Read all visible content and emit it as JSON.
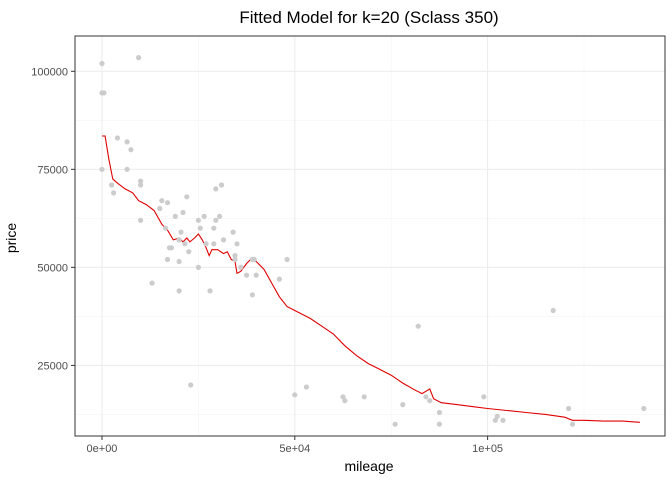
{
  "chart_data": {
    "type": "scatter",
    "title": "Fitted Model for k=20 (Sclass 350)",
    "xlabel": "mileage",
    "ylabel": "price",
    "xlim": [
      -7000,
      146000
    ],
    "ylim": [
      7000,
      109000
    ],
    "x_ticks": [
      0,
      50000,
      100000
    ],
    "x_tick_labels": [
      "0e+00",
      "5e+04",
      "1e+05"
    ],
    "y_ticks": [
      25000,
      50000,
      75000,
      100000
    ],
    "y_tick_labels": [
      "25000",
      "50000",
      "75000",
      "100000"
    ],
    "grid": true,
    "colors": {
      "points": "#cccccc",
      "fit_line": "#e00000"
    },
    "series": [
      {
        "kind": "points",
        "points": [
          [
            0,
            102000
          ],
          [
            0,
            94500
          ],
          [
            500,
            94500
          ],
          [
            9500,
            103500
          ],
          [
            0,
            75000
          ],
          [
            4000,
            83000
          ],
          [
            6500,
            82000
          ],
          [
            7500,
            80000
          ],
          [
            6500,
            75000
          ],
          [
            10000,
            72000
          ],
          [
            10000,
            71000
          ],
          [
            2500,
            71000
          ],
          [
            3000,
            69000
          ],
          [
            10000,
            62000
          ],
          [
            15000,
            65000
          ],
          [
            15500,
            67000
          ],
          [
            17000,
            66500
          ],
          [
            16500,
            60000
          ],
          [
            17500,
            55000
          ],
          [
            18000,
            55000
          ],
          [
            17000,
            52000
          ],
          [
            19000,
            63000
          ],
          [
            20000,
            57000
          ],
          [
            20500,
            59000
          ],
          [
            21000,
            64000
          ],
          [
            22000,
            68000
          ],
          [
            21500,
            56000
          ],
          [
            22500,
            54000
          ],
          [
            20000,
            51500
          ],
          [
            20000,
            44000
          ],
          [
            13000,
            46000
          ],
          [
            23000,
            20000
          ],
          [
            25000,
            62000
          ],
          [
            25500,
            60000
          ],
          [
            26500,
            63000
          ],
          [
            25000,
            50000
          ],
          [
            28000,
            44000
          ],
          [
            27000,
            56000
          ],
          [
            29000,
            56000
          ],
          [
            29000,
            60000
          ],
          [
            29500,
            62000
          ],
          [
            29500,
            70000
          ],
          [
            31000,
            71000
          ],
          [
            30500,
            63000
          ],
          [
            31500,
            57000
          ],
          [
            34000,
            59000
          ],
          [
            34500,
            53000
          ],
          [
            34500,
            52000
          ],
          [
            35000,
            56000
          ],
          [
            36000,
            50000
          ],
          [
            37500,
            48000
          ],
          [
            39000,
            52000
          ],
          [
            39500,
            52000
          ],
          [
            40000,
            48000
          ],
          [
            39000,
            43000
          ],
          [
            46000,
            47000
          ],
          [
            48000,
            52000
          ],
          [
            50000,
            17500
          ],
          [
            53000,
            19500
          ],
          [
            62500,
            17000
          ],
          [
            63000,
            16000
          ],
          [
            68000,
            17000
          ],
          [
            76000,
            10000
          ],
          [
            78000,
            15000
          ],
          [
            82000,
            35000
          ],
          [
            84000,
            17000
          ],
          [
            85000,
            16000
          ],
          [
            87500,
            13000
          ],
          [
            87500,
            10000
          ],
          [
            99000,
            17000
          ],
          [
            102000,
            11000
          ],
          [
            102500,
            12000
          ],
          [
            104000,
            11000
          ],
          [
            117000,
            39000
          ],
          [
            121000,
            14000
          ],
          [
            122000,
            10000
          ],
          [
            140500,
            14000
          ]
        ]
      },
      {
        "kind": "line",
        "points": [
          [
            0,
            83500
          ],
          [
            800,
            83500
          ],
          [
            1800,
            77500
          ],
          [
            2800,
            72500
          ],
          [
            4000,
            71500
          ],
          [
            6000,
            70000
          ],
          [
            8000,
            69000
          ],
          [
            9500,
            67000
          ],
          [
            11500,
            66000
          ],
          [
            13500,
            64500
          ],
          [
            15500,
            61000
          ],
          [
            17000,
            59500
          ],
          [
            18500,
            57000
          ],
          [
            20000,
            57500
          ],
          [
            21000,
            56500
          ],
          [
            22000,
            57500
          ],
          [
            22800,
            56500
          ],
          [
            24000,
            57500
          ],
          [
            25000,
            58500
          ],
          [
            26000,
            57000
          ],
          [
            27000,
            55000
          ],
          [
            27800,
            53000
          ],
          [
            28500,
            54500
          ],
          [
            30000,
            54500
          ],
          [
            31500,
            53500
          ],
          [
            32500,
            54000
          ],
          [
            33500,
            52000
          ],
          [
            34500,
            51500
          ],
          [
            35000,
            48500
          ],
          [
            36000,
            49000
          ],
          [
            37500,
            51000
          ],
          [
            38500,
            52000
          ],
          [
            40000,
            51500
          ],
          [
            42000,
            49500
          ],
          [
            44000,
            46000
          ],
          [
            46000,
            42500
          ],
          [
            48000,
            40000
          ],
          [
            51000,
            38500
          ],
          [
            54000,
            37000
          ],
          [
            57000,
            35000
          ],
          [
            60000,
            33000
          ],
          [
            63000,
            30000
          ],
          [
            66000,
            27500
          ],
          [
            69000,
            25500
          ],
          [
            72000,
            24000
          ],
          [
            75000,
            22500
          ],
          [
            78000,
            20500
          ],
          [
            81000,
            18800
          ],
          [
            83000,
            17800
          ],
          [
            85000,
            19000
          ],
          [
            86000,
            16500
          ],
          [
            88000,
            15500
          ],
          [
            92000,
            15000
          ],
          [
            96000,
            14500
          ],
          [
            100000,
            14000
          ],
          [
            105000,
            13500
          ],
          [
            110000,
            13000
          ],
          [
            115000,
            12500
          ],
          [
            120000,
            11800
          ],
          [
            122000,
            11000
          ],
          [
            125000,
            11000
          ],
          [
            130000,
            10800
          ],
          [
            135000,
            10800
          ],
          [
            139500,
            10500
          ]
        ]
      }
    ]
  }
}
